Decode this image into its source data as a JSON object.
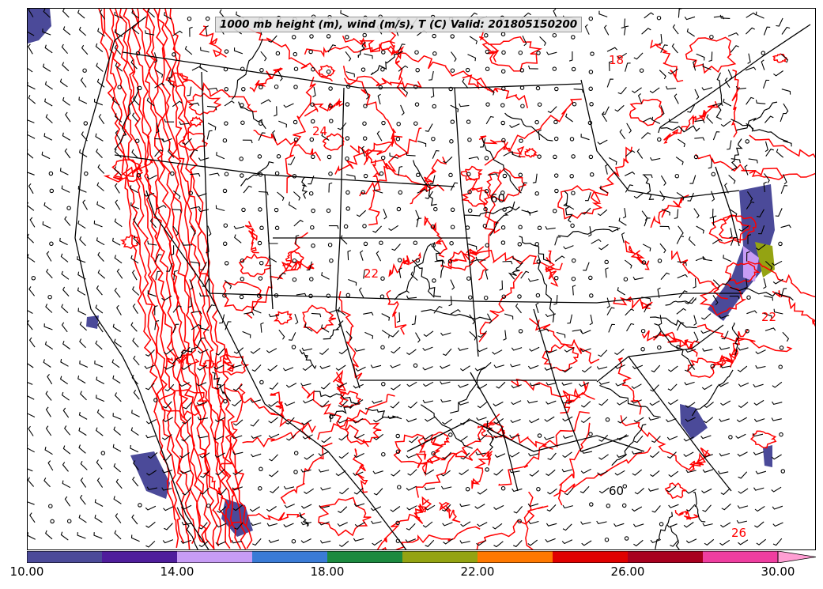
{
  "title": "1000 mb height (m), wind (m/s), T (C) Valid: 201805150200",
  "colorbar": {
    "min": 10,
    "max": 30,
    "step": 2,
    "extend": "max",
    "colors": [
      "#4b4a99",
      "#4f1d9c",
      "#c79cf5",
      "#3a7bd6",
      "#1c8a3f",
      "#94a312",
      "#ff7800",
      "#e00000",
      "#a8001f",
      "#ef3ea0"
    ],
    "extend_color": "#ff9ed3",
    "tick_labels": [
      "10.00",
      "14.00",
      "18.00",
      "22.00",
      "26.00",
      "30.00"
    ]
  },
  "contour_labels": [
    "18",
    "24",
    "60",
    "22",
    "22",
    "60",
    "26"
  ],
  "layers": {
    "height_contour_color": "#000000",
    "temperature_contour_color": "#ff0000",
    "boundary_color": "#000000",
    "wind_barb_color": "#000000"
  }
}
